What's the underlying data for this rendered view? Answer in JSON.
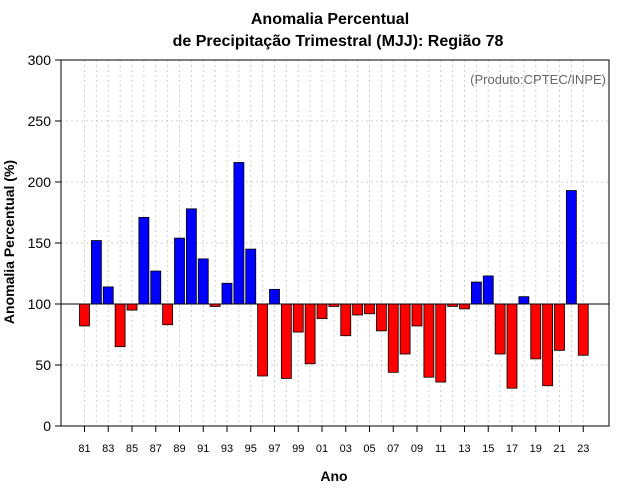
{
  "chart_data": {
    "type": "bar",
    "title_line1": "Anomalia Percentual",
    "title_line2": "de Precipitação Trimestral (MJJ): Região 78",
    "xlabel": "Ano",
    "ylabel": "Anomalia Percentual (%)",
    "credit": "(Produto:CPTEC/INPE)",
    "ylim": [
      0,
      300
    ],
    "yticks": [
      "0",
      "50",
      "100",
      "150",
      "200",
      "250",
      "300"
    ],
    "baseline": 100,
    "grid": true,
    "colors": {
      "above": "#0000ff",
      "below": "#ff0000",
      "outline": "#000000",
      "grid": "#cccccc"
    },
    "tick_labels": [
      "81",
      "83",
      "85",
      "87",
      "89",
      "91",
      "93",
      "95",
      "97",
      "99",
      "01",
      "03",
      "05",
      "07",
      "09",
      "11",
      "13",
      "15",
      "17",
      "19",
      "21",
      "23"
    ],
    "categories": [
      "1981",
      "1982",
      "1983",
      "1984",
      "1985",
      "1986",
      "1987",
      "1988",
      "1989",
      "1990",
      "1991",
      "1992",
      "1993",
      "1994",
      "1995",
      "1996",
      "1997",
      "1998",
      "1999",
      "2000",
      "2001",
      "2002",
      "2003",
      "2004",
      "2005",
      "2006",
      "2007",
      "2008",
      "2009",
      "2010",
      "2011",
      "2012",
      "2013",
      "2014",
      "2015",
      "2016",
      "2017",
      "2018",
      "2019",
      "2020",
      "2021",
      "2022",
      "2023"
    ],
    "values": [
      82,
      152,
      114,
      65,
      95,
      171,
      127,
      83,
      154,
      178,
      137,
      98,
      117,
      216,
      145,
      41,
      112,
      39,
      77,
      51,
      88,
      98,
      74,
      91,
      92,
      78,
      44,
      59,
      82,
      40,
      36,
      98,
      96,
      118,
      123,
      59,
      31,
      106,
      55,
      33,
      62,
      193,
      58
    ]
  }
}
